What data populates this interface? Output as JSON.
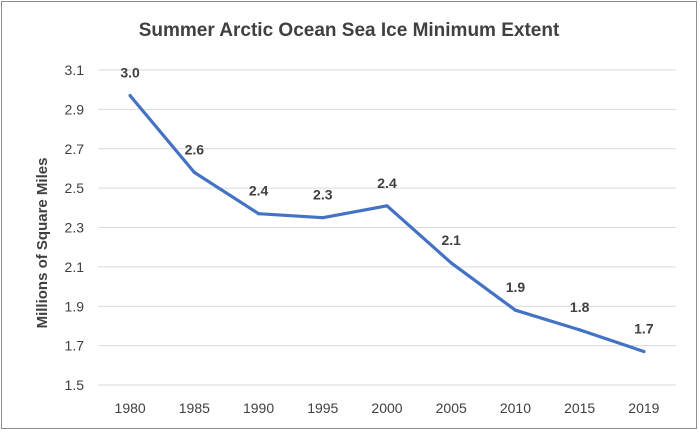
{
  "chart_data": {
    "type": "line",
    "title": "Summer Arctic Ocean Sea Ice Minimum Extent",
    "xlabel": "",
    "ylabel": "Millions of Square Miles",
    "categories": [
      "1980",
      "1985",
      "1990",
      "1995",
      "2000",
      "2005",
      "2010",
      "2015",
      "2019"
    ],
    "series": [
      {
        "values": [
          2.97,
          2.58,
          2.37,
          2.35,
          2.41,
          2.12,
          1.88,
          1.78,
          1.67
        ],
        "data_labels": [
          "3.0",
          "2.6",
          "2.4",
          "2.3",
          "2.4",
          "2.1",
          "1.9",
          "1.8",
          "1.7"
        ],
        "color": "#4472c4"
      }
    ],
    "ylim": [
      1.5,
      3.1
    ],
    "yticks": [
      "1.5",
      "1.7",
      "1.9",
      "2.1",
      "2.3",
      "2.5",
      "2.7",
      "2.9",
      "3.1"
    ],
    "grid": true,
    "legend": "none"
  }
}
